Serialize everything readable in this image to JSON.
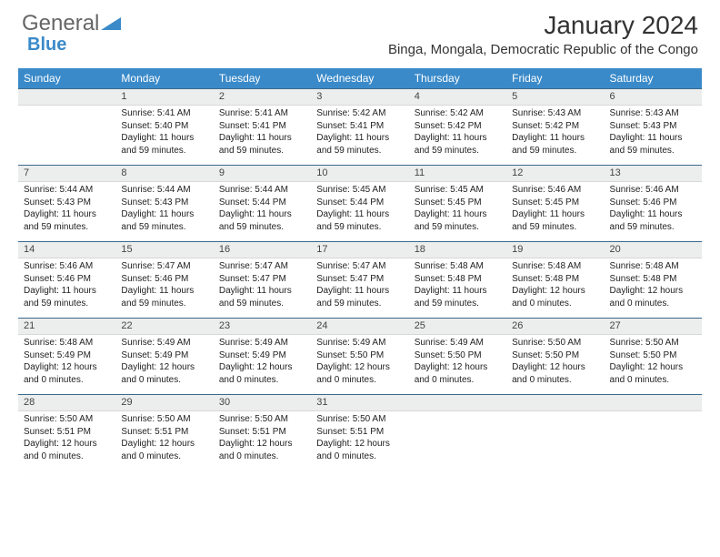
{
  "logo": {
    "general": "General",
    "blue": "Blue"
  },
  "title": "January 2024",
  "location": "Binga, Mongala, Democratic Republic of the Congo",
  "colors": {
    "header_bg": "#3a8ac9",
    "header_text": "#ffffff",
    "daybar_bg": "#eceded",
    "daybar_border_top": "#3a6a8c",
    "text": "#222222",
    "logo_gray": "#666666",
    "logo_blue": "#3a8ac9"
  },
  "day_headers": [
    "Sunday",
    "Monday",
    "Tuesday",
    "Wednesday",
    "Thursday",
    "Friday",
    "Saturday"
  ],
  "weeks": [
    [
      null,
      {
        "n": "1",
        "sr": "5:41 AM",
        "ss": "5:40 PM",
        "dl": "11 hours and 59 minutes."
      },
      {
        "n": "2",
        "sr": "5:41 AM",
        "ss": "5:41 PM",
        "dl": "11 hours and 59 minutes."
      },
      {
        "n": "3",
        "sr": "5:42 AM",
        "ss": "5:41 PM",
        "dl": "11 hours and 59 minutes."
      },
      {
        "n": "4",
        "sr": "5:42 AM",
        "ss": "5:42 PM",
        "dl": "11 hours and 59 minutes."
      },
      {
        "n": "5",
        "sr": "5:43 AM",
        "ss": "5:42 PM",
        "dl": "11 hours and 59 minutes."
      },
      {
        "n": "6",
        "sr": "5:43 AM",
        "ss": "5:43 PM",
        "dl": "11 hours and 59 minutes."
      }
    ],
    [
      {
        "n": "7",
        "sr": "5:44 AM",
        "ss": "5:43 PM",
        "dl": "11 hours and 59 minutes."
      },
      {
        "n": "8",
        "sr": "5:44 AM",
        "ss": "5:43 PM",
        "dl": "11 hours and 59 minutes."
      },
      {
        "n": "9",
        "sr": "5:44 AM",
        "ss": "5:44 PM",
        "dl": "11 hours and 59 minutes."
      },
      {
        "n": "10",
        "sr": "5:45 AM",
        "ss": "5:44 PM",
        "dl": "11 hours and 59 minutes."
      },
      {
        "n": "11",
        "sr": "5:45 AM",
        "ss": "5:45 PM",
        "dl": "11 hours and 59 minutes."
      },
      {
        "n": "12",
        "sr": "5:46 AM",
        "ss": "5:45 PM",
        "dl": "11 hours and 59 minutes."
      },
      {
        "n": "13",
        "sr": "5:46 AM",
        "ss": "5:46 PM",
        "dl": "11 hours and 59 minutes."
      }
    ],
    [
      {
        "n": "14",
        "sr": "5:46 AM",
        "ss": "5:46 PM",
        "dl": "11 hours and 59 minutes."
      },
      {
        "n": "15",
        "sr": "5:47 AM",
        "ss": "5:46 PM",
        "dl": "11 hours and 59 minutes."
      },
      {
        "n": "16",
        "sr": "5:47 AM",
        "ss": "5:47 PM",
        "dl": "11 hours and 59 minutes."
      },
      {
        "n": "17",
        "sr": "5:47 AM",
        "ss": "5:47 PM",
        "dl": "11 hours and 59 minutes."
      },
      {
        "n": "18",
        "sr": "5:48 AM",
        "ss": "5:48 PM",
        "dl": "11 hours and 59 minutes."
      },
      {
        "n": "19",
        "sr": "5:48 AM",
        "ss": "5:48 PM",
        "dl": "12 hours and 0 minutes."
      },
      {
        "n": "20",
        "sr": "5:48 AM",
        "ss": "5:48 PM",
        "dl": "12 hours and 0 minutes."
      }
    ],
    [
      {
        "n": "21",
        "sr": "5:48 AM",
        "ss": "5:49 PM",
        "dl": "12 hours and 0 minutes."
      },
      {
        "n": "22",
        "sr": "5:49 AM",
        "ss": "5:49 PM",
        "dl": "12 hours and 0 minutes."
      },
      {
        "n": "23",
        "sr": "5:49 AM",
        "ss": "5:49 PM",
        "dl": "12 hours and 0 minutes."
      },
      {
        "n": "24",
        "sr": "5:49 AM",
        "ss": "5:50 PM",
        "dl": "12 hours and 0 minutes."
      },
      {
        "n": "25",
        "sr": "5:49 AM",
        "ss": "5:50 PM",
        "dl": "12 hours and 0 minutes."
      },
      {
        "n": "26",
        "sr": "5:50 AM",
        "ss": "5:50 PM",
        "dl": "12 hours and 0 minutes."
      },
      {
        "n": "27",
        "sr": "5:50 AM",
        "ss": "5:50 PM",
        "dl": "12 hours and 0 minutes."
      }
    ],
    [
      {
        "n": "28",
        "sr": "5:50 AM",
        "ss": "5:51 PM",
        "dl": "12 hours and 0 minutes."
      },
      {
        "n": "29",
        "sr": "5:50 AM",
        "ss": "5:51 PM",
        "dl": "12 hours and 0 minutes."
      },
      {
        "n": "30",
        "sr": "5:50 AM",
        "ss": "5:51 PM",
        "dl": "12 hours and 0 minutes."
      },
      {
        "n": "31",
        "sr": "5:50 AM",
        "ss": "5:51 PM",
        "dl": "12 hours and 0 minutes."
      },
      null,
      null,
      null
    ]
  ],
  "labels": {
    "sunrise": "Sunrise: ",
    "sunset": "Sunset: ",
    "daylight": "Daylight: "
  }
}
